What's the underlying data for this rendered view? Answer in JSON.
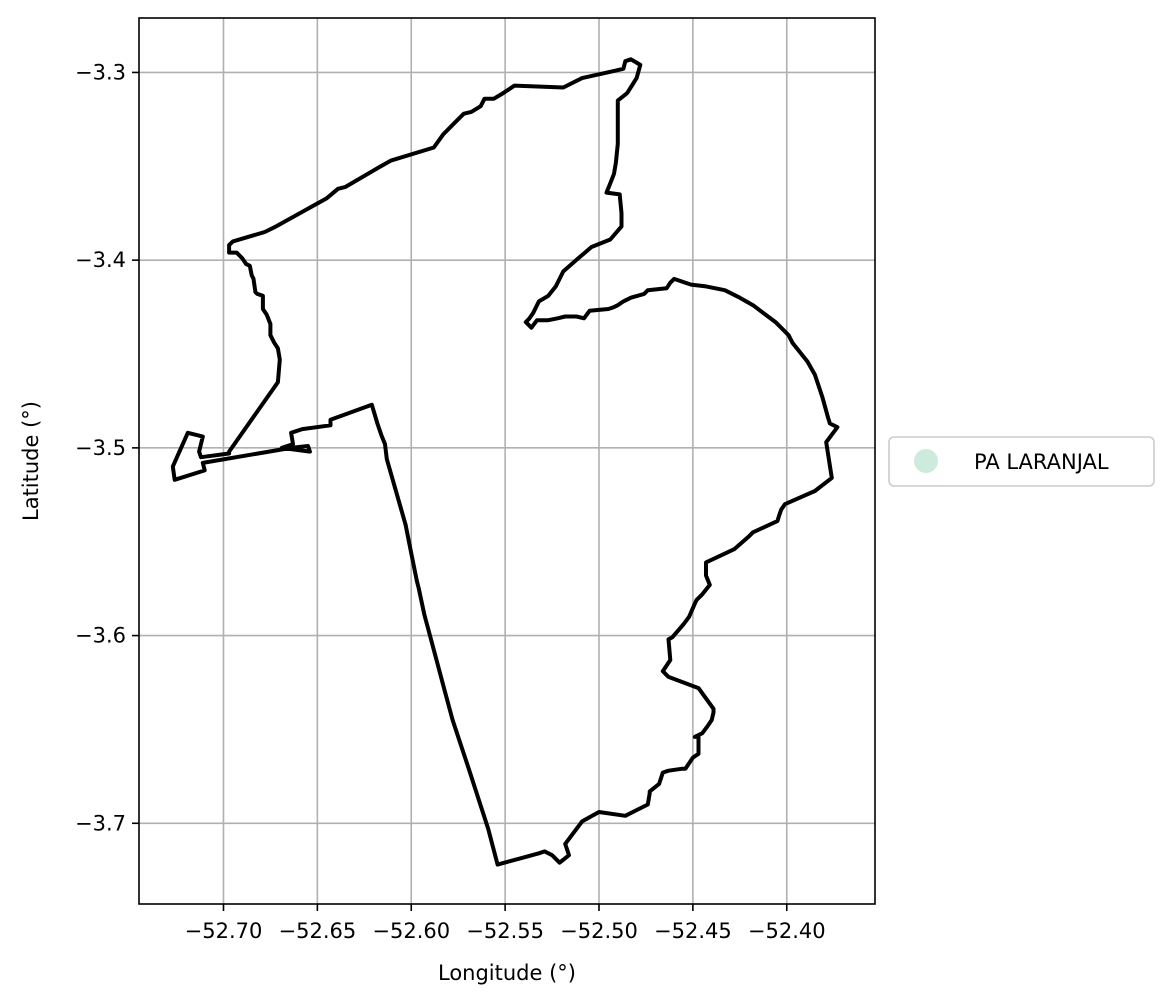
{
  "chart_data": {
    "type": "map",
    "xlabel": "Longitude (°)",
    "ylabel": "Latitude (°)",
    "xlim": [
      -52.745,
      -52.353
    ],
    "ylim": [
      -3.743,
      -3.271
    ],
    "grid": true,
    "x_ticks": [
      -52.7,
      -52.65,
      -52.6,
      -52.55,
      -52.5,
      -52.45,
      -52.4
    ],
    "x_tick_labels": [
      "−52.70",
      "−52.65",
      "−52.60",
      "−52.55",
      "−52.50",
      "−52.45",
      "−52.40"
    ],
    "y_ticks": [
      -3.3,
      -3.4,
      -3.5,
      -3.6,
      -3.7
    ],
    "y_tick_labels": [
      "−3.3",
      "−3.4",
      "−3.5",
      "−3.6",
      "−3.7"
    ],
    "legend": {
      "placement": "center-right-outside",
      "entries": [
        {
          "label": "PA LARANJAL",
          "marker_color": "#cdebdc"
        }
      ]
    },
    "boundary_color": "#000000",
    "boundary": [
      [
        -52.486,
        -3.294
      ],
      [
        -52.487,
        -3.298
      ],
      [
        -52.491,
        -3.299
      ],
      [
        -52.509,
        -3.303
      ],
      [
        -52.519,
        -3.308
      ],
      [
        -52.545,
        -3.307
      ],
      [
        -52.551,
        -3.311
      ],
      [
        -52.556,
        -3.314
      ],
      [
        -52.561,
        -3.314
      ],
      [
        -52.563,
        -3.318
      ],
      [
        -52.568,
        -3.321
      ],
      [
        -52.572,
        -3.322
      ],
      [
        -52.577,
        -3.327
      ],
      [
        -52.583,
        -3.333
      ],
      [
        -52.588,
        -3.34
      ],
      [
        -52.611,
        -3.347
      ],
      [
        -52.618,
        -3.351
      ],
      [
        -52.635,
        -3.361
      ],
      [
        -52.639,
        -3.362
      ],
      [
        -52.645,
        -3.367
      ],
      [
        -52.672,
        -3.382
      ],
      [
        -52.678,
        -3.385
      ],
      [
        -52.695,
        -3.39
      ],
      [
        -52.697,
        -3.392
      ],
      [
        -52.697,
        -3.396
      ],
      [
        -52.693,
        -3.396
      ],
      [
        -52.69,
        -3.399
      ],
      [
        -52.688,
        -3.402
      ],
      [
        -52.686,
        -3.403
      ],
      [
        -52.685,
        -3.408
      ],
      [
        -52.684,
        -3.41
      ],
      [
        -52.683,
        -3.417
      ],
      [
        -52.682,
        -3.418
      ],
      [
        -52.679,
        -3.419
      ],
      [
        -52.679,
        -3.426
      ],
      [
        -52.677,
        -3.429
      ],
      [
        -52.675,
        -3.434
      ],
      [
        -52.675,
        -3.44
      ],
      [
        -52.673,
        -3.444
      ],
      [
        -52.671,
        -3.447
      ],
      [
        -52.67,
        -3.453
      ],
      [
        -52.671,
        -3.465
      ],
      [
        -52.697,
        -3.502
      ],
      [
        -52.697,
        -3.503
      ],
      [
        -52.712,
        -3.505
      ],
      [
        -52.713,
        -3.502
      ],
      [
        -52.711,
        -3.494
      ],
      [
        -52.719,
        -3.492
      ],
      [
        -52.727,
        -3.51
      ],
      [
        -52.726,
        -3.517
      ],
      [
        -52.71,
        -3.512
      ],
      [
        -52.711,
        -3.508
      ],
      [
        -52.664,
        -3.5
      ],
      [
        -52.655,
        -3.499
      ],
      [
        -52.654,
        -3.502
      ],
      [
        -52.669,
        -3.5
      ],
      [
        -52.663,
        -3.498
      ],
      [
        -52.664,
        -3.492
      ],
      [
        -52.658,
        -3.49
      ],
      [
        -52.643,
        -3.488
      ],
      [
        -52.643,
        -3.485
      ],
      [
        -52.621,
        -3.477
      ],
      [
        -52.618,
        -3.487
      ],
      [
        -52.616,
        -3.493
      ],
      [
        -52.614,
        -3.498
      ],
      [
        -52.613,
        -3.506
      ],
      [
        -52.603,
        -3.541
      ],
      [
        -52.6,
        -3.556
      ],
      [
        -52.597,
        -3.571
      ],
      [
        -52.596,
        -3.575
      ],
      [
        -52.593,
        -3.589
      ],
      [
        -52.59,
        -3.6
      ],
      [
        -52.582,
        -3.63
      ],
      [
        -52.578,
        -3.645
      ],
      [
        -52.569,
        -3.672
      ],
      [
        -52.559,
        -3.703
      ],
      [
        -52.554,
        -3.722
      ],
      [
        -52.543,
        -3.719
      ],
      [
        -52.532,
        -3.716
      ],
      [
        -52.529,
        -3.715
      ],
      [
        -52.525,
        -3.717
      ],
      [
        -52.521,
        -3.721
      ],
      [
        -52.516,
        -3.717
      ],
      [
        -52.518,
        -3.711
      ],
      [
        -52.509,
        -3.699
      ],
      [
        -52.5,
        -3.694
      ],
      [
        -52.486,
        -3.696
      ],
      [
        -52.474,
        -3.69
      ],
      [
        -52.473,
        -3.684
      ],
      [
        -52.473,
        -3.683
      ],
      [
        -52.468,
        -3.679
      ],
      [
        -52.466,
        -3.673
      ],
      [
        -52.463,
        -3.672
      ],
      [
        -52.456,
        -3.671
      ],
      [
        -52.454,
        -3.671
      ],
      [
        -52.45,
        -3.665
      ],
      [
        -52.447,
        -3.663
      ],
      [
        -52.447,
        -3.654
      ],
      [
        -52.449,
        -3.654
      ],
      [
        -52.445,
        -3.652
      ],
      [
        -52.442,
        -3.648
      ],
      [
        -52.44,
        -3.645
      ],
      [
        -52.439,
        -3.641
      ],
      [
        -52.439,
        -3.639
      ],
      [
        -52.447,
        -3.628
      ],
      [
        -52.463,
        -3.622
      ],
      [
        -52.466,
        -3.619
      ],
      [
        -52.462,
        -3.613
      ],
      [
        -52.463,
        -3.602
      ],
      [
        -52.461,
        -3.601
      ],
      [
        -52.455,
        -3.594
      ],
      [
        -52.452,
        -3.59
      ],
      [
        -52.449,
        -3.583
      ],
      [
        -52.448,
        -3.581
      ],
      [
        -52.445,
        -3.578
      ],
      [
        -52.441,
        -3.573
      ],
      [
        -52.443,
        -3.568
      ],
      [
        -52.443,
        -3.561
      ],
      [
        -52.428,
        -3.554
      ],
      [
        -52.42,
        -3.547
      ],
      [
        -52.418,
        -3.545
      ],
      [
        -52.405,
        -3.539
      ],
      [
        -52.404,
        -3.536
      ],
      [
        -52.403,
        -3.533
      ],
      [
        -52.401,
        -3.53
      ],
      [
        -52.385,
        -3.523
      ],
      [
        -52.376,
        -3.516
      ],
      [
        -52.379,
        -3.497
      ],
      [
        -52.373,
        -3.489
      ],
      [
        -52.377,
        -3.487
      ],
      [
        -52.378,
        -3.484
      ],
      [
        -52.381,
        -3.473
      ],
      [
        -52.385,
        -3.461
      ],
      [
        -52.389,
        -3.454
      ],
      [
        -52.397,
        -3.444
      ],
      [
        -52.399,
        -3.44
      ],
      [
        -52.406,
        -3.433
      ],
      [
        -52.418,
        -3.424
      ],
      [
        -52.425,
        -3.42
      ],
      [
        -52.433,
        -3.416
      ],
      [
        -52.443,
        -3.414
      ],
      [
        -52.451,
        -3.413
      ],
      [
        -52.46,
        -3.41
      ],
      [
        -52.462,
        -3.412
      ],
      [
        -52.464,
        -3.415
      ],
      [
        -52.474,
        -3.416
      ],
      [
        -52.476,
        -3.418
      ],
      [
        -52.483,
        -3.42
      ],
      [
        -52.487,
        -3.422
      ],
      [
        -52.49,
        -3.424
      ],
      [
        -52.492,
        -3.425
      ],
      [
        -52.495,
        -3.426
      ],
      [
        -52.505,
        -3.427
      ],
      [
        -52.508,
        -3.431
      ],
      [
        -52.512,
        -3.43
      ],
      [
        -52.518,
        -3.43
      ],
      [
        -52.522,
        -3.431
      ],
      [
        -52.527,
        -3.432
      ],
      [
        -52.533,
        -3.432
      ],
      [
        -52.536,
        -3.436
      ],
      [
        -52.539,
        -3.433
      ],
      [
        -52.537,
        -3.431
      ],
      [
        -52.535,
        -3.428
      ],
      [
        -52.532,
        -3.422
      ],
      [
        -52.527,
        -3.419
      ],
      [
        -52.523,
        -3.414
      ],
      [
        -52.519,
        -3.406
      ],
      [
        -52.511,
        -3.399
      ],
      [
        -52.504,
        -3.393
      ],
      [
        -52.494,
        -3.389
      ],
      [
        -52.488,
        -3.382
      ],
      [
        -52.488,
        -3.375
      ],
      [
        -52.489,
        -3.365
      ],
      [
        -52.496,
        -3.364
      ],
      [
        -52.494,
        -3.359
      ],
      [
        -52.492,
        -3.354
      ],
      [
        -52.491,
        -3.348
      ],
      [
        -52.49,
        -3.338
      ],
      [
        -52.49,
        -3.324
      ],
      [
        -52.49,
        -3.315
      ],
      [
        -52.485,
        -3.311
      ],
      [
        -52.48,
        -3.303
      ],
      [
        -52.478,
        -3.296
      ],
      [
        -52.483,
        -3.293
      ],
      [
        -52.486,
        -3.294
      ]
    ]
  }
}
